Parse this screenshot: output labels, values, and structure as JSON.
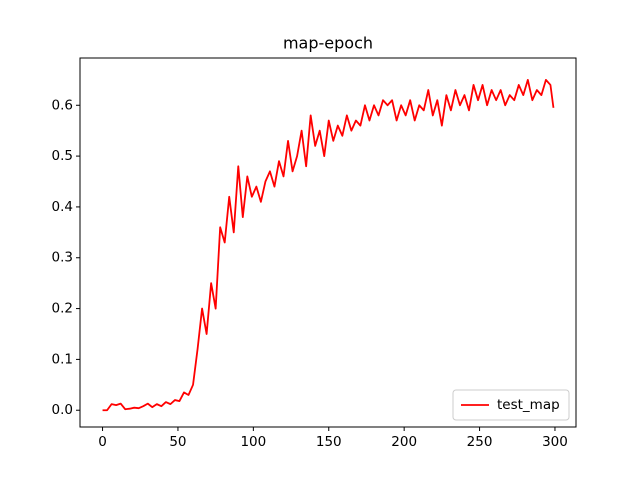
{
  "chart_data": {
    "type": "line",
    "title": "map-epoch",
    "x": [
      0,
      3,
      6,
      9,
      12,
      15,
      18,
      21,
      24,
      27,
      30,
      33,
      36,
      39,
      42,
      45,
      48,
      51,
      54,
      57,
      60,
      63,
      66,
      69,
      72,
      75,
      78,
      81,
      84,
      87,
      90,
      93,
      96,
      99,
      102,
      105,
      108,
      111,
      114,
      117,
      120,
      123,
      126,
      129,
      132,
      135,
      138,
      141,
      144,
      147,
      150,
      153,
      156,
      159,
      162,
      165,
      168,
      171,
      174,
      177,
      180,
      183,
      186,
      189,
      192,
      195,
      198,
      201,
      204,
      207,
      210,
      213,
      216,
      219,
      222,
      225,
      228,
      231,
      234,
      237,
      240,
      243,
      246,
      249,
      252,
      255,
      258,
      261,
      264,
      267,
      270,
      273,
      276,
      279,
      282,
      285,
      288,
      291,
      294,
      297,
      299
    ],
    "series": [
      {
        "name": "test_map",
        "color": "#ff0000",
        "values": [
          0,
          0,
          0.012,
          0.01,
          0.013,
          0.002,
          0.003,
          0.005,
          0.004,
          0.008,
          0.013,
          0.006,
          0.012,
          0.008,
          0.016,
          0.012,
          0.02,
          0.018,
          0.035,
          0.03,
          0.05,
          0.12,
          0.2,
          0.15,
          0.25,
          0.2,
          0.36,
          0.33,
          0.42,
          0.35,
          0.48,
          0.38,
          0.46,
          0.42,
          0.44,
          0.41,
          0.45,
          0.47,
          0.44,
          0.49,
          0.46,
          0.53,
          0.47,
          0.5,
          0.55,
          0.48,
          0.58,
          0.52,
          0.55,
          0.5,
          0.57,
          0.53,
          0.56,
          0.54,
          0.58,
          0.55,
          0.57,
          0.56,
          0.6,
          0.57,
          0.6,
          0.58,
          0.61,
          0.6,
          0.61,
          0.57,
          0.6,
          0.58,
          0.61,
          0.57,
          0.6,
          0.59,
          0.63,
          0.58,
          0.61,
          0.56,
          0.62,
          0.59,
          0.63,
          0.6,
          0.62,
          0.59,
          0.64,
          0.61,
          0.64,
          0.6,
          0.63,
          0.61,
          0.63,
          0.6,
          0.62,
          0.61,
          0.64,
          0.62,
          0.65,
          0.61,
          0.63,
          0.62,
          0.65,
          0.64,
          0.595
        ]
      }
    ],
    "xlim": [
      -14.95,
      313.95
    ],
    "xticks": [
      0,
      50,
      100,
      150,
      200,
      250,
      300
    ],
    "ylim": [
      -0.033,
      0.693
    ],
    "yticks": [
      {
        "value": 0,
        "label": "0.0"
      },
      0.1,
      0.2,
      0.3,
      0.4,
      0.5,
      0.6
    ],
    "legend": "lower right"
  }
}
